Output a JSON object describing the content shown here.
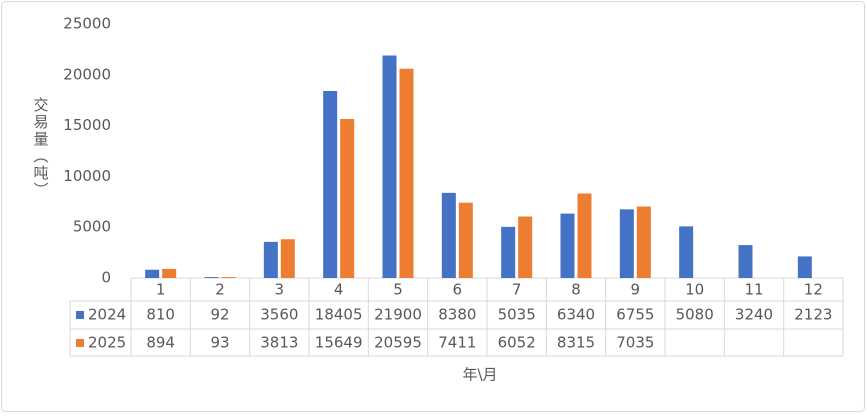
{
  "chart_data": {
    "type": "bar",
    "y_label": "交易量（吨）",
    "x_label": "年\\月",
    "categories": [
      "1",
      "2",
      "3",
      "4",
      "5",
      "6",
      "7",
      "8",
      "9",
      "10",
      "11",
      "12"
    ],
    "series": [
      {
        "name": "2024",
        "color": "#4472c4",
        "values": [
          810,
          92,
          3560,
          18405,
          21900,
          8380,
          5035,
          6340,
          6755,
          5080,
          3240,
          2123
        ]
      },
      {
        "name": "2025",
        "color": "#ed7d31",
        "values": [
          894,
          93,
          3813,
          15649,
          20595,
          7411,
          6052,
          8315,
          7035,
          null,
          null,
          null
        ]
      }
    ],
    "ylim": [
      0,
      25000
    ],
    "yticks": [
      0,
      5000,
      10000,
      15000,
      20000,
      25000
    ],
    "grid": false,
    "legend": "table"
  }
}
